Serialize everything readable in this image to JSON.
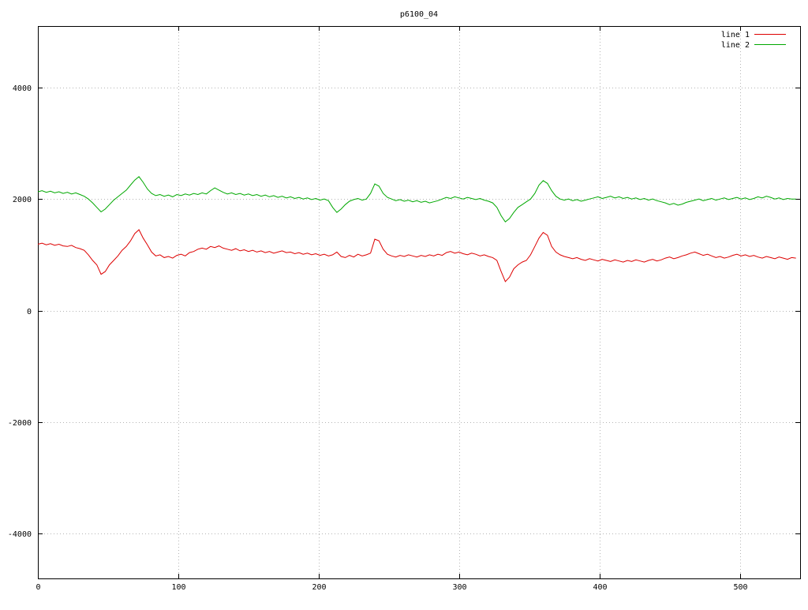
{
  "chart_data": {
    "type": "line",
    "title": "p6100_04",
    "xlabel": "",
    "ylabel": "",
    "xlim": [
      0,
      543
    ],
    "ylim": [
      -4800,
      5100
    ],
    "xticks": [
      0,
      100,
      200,
      300,
      400,
      500
    ],
    "yticks": [
      -4000,
      -2000,
      0,
      2000,
      4000
    ],
    "grid": true,
    "legend_position": "top-right",
    "x_start": 0,
    "x_step": 3,
    "colors": {
      "grid": "#b4b4b4",
      "border": "#000000",
      "background": "#ffffff"
    },
    "series": [
      {
        "name": "line 1",
        "color": "#dd0000",
        "values": [
          1190,
          1210,
          1180,
          1200,
          1170,
          1190,
          1160,
          1150,
          1170,
          1130,
          1110,
          1080,
          1000,
          900,
          820,
          650,
          700,
          820,
          900,
          980,
          1080,
          1150,
          1250,
          1380,
          1450,
          1300,
          1180,
          1050,
          980,
          1000,
          950,
          970,
          940,
          990,
          1010,
          980,
          1040,
          1060,
          1100,
          1120,
          1100,
          1150,
          1130,
          1160,
          1120,
          1100,
          1080,
          1110,
          1070,
          1090,
          1060,
          1080,
          1050,
          1070,
          1040,
          1060,
          1030,
          1050,
          1070,
          1040,
          1050,
          1020,
          1040,
          1010,
          1030,
          1000,
          1020,
          990,
          1010,
          980,
          1000,
          1050,
          970,
          950,
          990,
          960,
          1010,
          980,
          1000,
          1030,
          1280,
          1250,
          1100,
          1010,
          980,
          960,
          990,
          970,
          1000,
          980,
          960,
          990,
          970,
          1000,
          980,
          1010,
          990,
          1040,
          1060,
          1030,
          1050,
          1020,
          1000,
          1030,
          1010,
          980,
          1000,
          970,
          950,
          900,
          700,
          520,
          600,
          750,
          820,
          870,
          900,
          1000,
          1150,
          1300,
          1400,
          1350,
          1150,
          1050,
          1000,
          970,
          950,
          930,
          950,
          920,
          900,
          930,
          910,
          890,
          920,
          900,
          880,
          910,
          890,
          870,
          900,
          880,
          910,
          890,
          870,
          900,
          920,
          890,
          910,
          940,
          960,
          930,
          950,
          980,
          1000,
          1030,
          1050,
          1020,
          990,
          1010,
          980,
          950,
          970,
          940,
          960,
          990,
          1010,
          980,
          1000,
          970,
          990,
          960,
          940,
          970,
          950,
          930,
          960,
          940,
          920,
          950,
          940
        ]
      },
      {
        "name": "line 2",
        "color": "#00a800",
        "values": [
          2130,
          2150,
          2120,
          2140,
          2110,
          2130,
          2100,
          2120,
          2090,
          2110,
          2080,
          2050,
          2000,
          1930,
          1850,
          1770,
          1820,
          1900,
          1980,
          2040,
          2100,
          2160,
          2250,
          2340,
          2400,
          2300,
          2180,
          2100,
          2060,
          2080,
          2050,
          2070,
          2040,
          2080,
          2060,
          2090,
          2070,
          2100,
          2080,
          2110,
          2090,
          2150,
          2200,
          2160,
          2120,
          2090,
          2110,
          2080,
          2100,
          2070,
          2090,
          2060,
          2080,
          2050,
          2070,
          2040,
          2060,
          2030,
          2050,
          2020,
          2040,
          2010,
          2030,
          2000,
          2020,
          1990,
          2010,
          1980,
          2000,
          1970,
          1850,
          1760,
          1820,
          1900,
          1960,
          1990,
          2010,
          1980,
          2000,
          2100,
          2270,
          2230,
          2100,
          2030,
          2000,
          1970,
          1990,
          1960,
          1980,
          1950,
          1970,
          1940,
          1960,
          1930,
          1950,
          1970,
          2000,
          2030,
          2010,
          2040,
          2020,
          2000,
          2030,
          2010,
          1990,
          2010,
          1980,
          1960,
          1930,
          1850,
          1700,
          1590,
          1650,
          1760,
          1850,
          1900,
          1950,
          2000,
          2100,
          2250,
          2330,
          2280,
          2150,
          2050,
          2000,
          1980,
          2000,
          1970,
          1990,
          1960,
          1980,
          2000,
          2020,
          2040,
          2010,
          2030,
          2050,
          2020,
          2040,
          2010,
          2030,
          2000,
          2020,
          1990,
          2010,
          1980,
          2000,
          1970,
          1950,
          1930,
          1900,
          1920,
          1890,
          1910,
          1940,
          1960,
          1980,
          2000,
          1970,
          1990,
          2010,
          1980,
          2000,
          2020,
          1990,
          2010,
          2030,
          2000,
          2020,
          1990,
          2010,
          2040,
          2020,
          2050,
          2030,
          2000,
          2020,
          1990,
          2010,
          2000,
          2000
        ]
      }
    ]
  }
}
